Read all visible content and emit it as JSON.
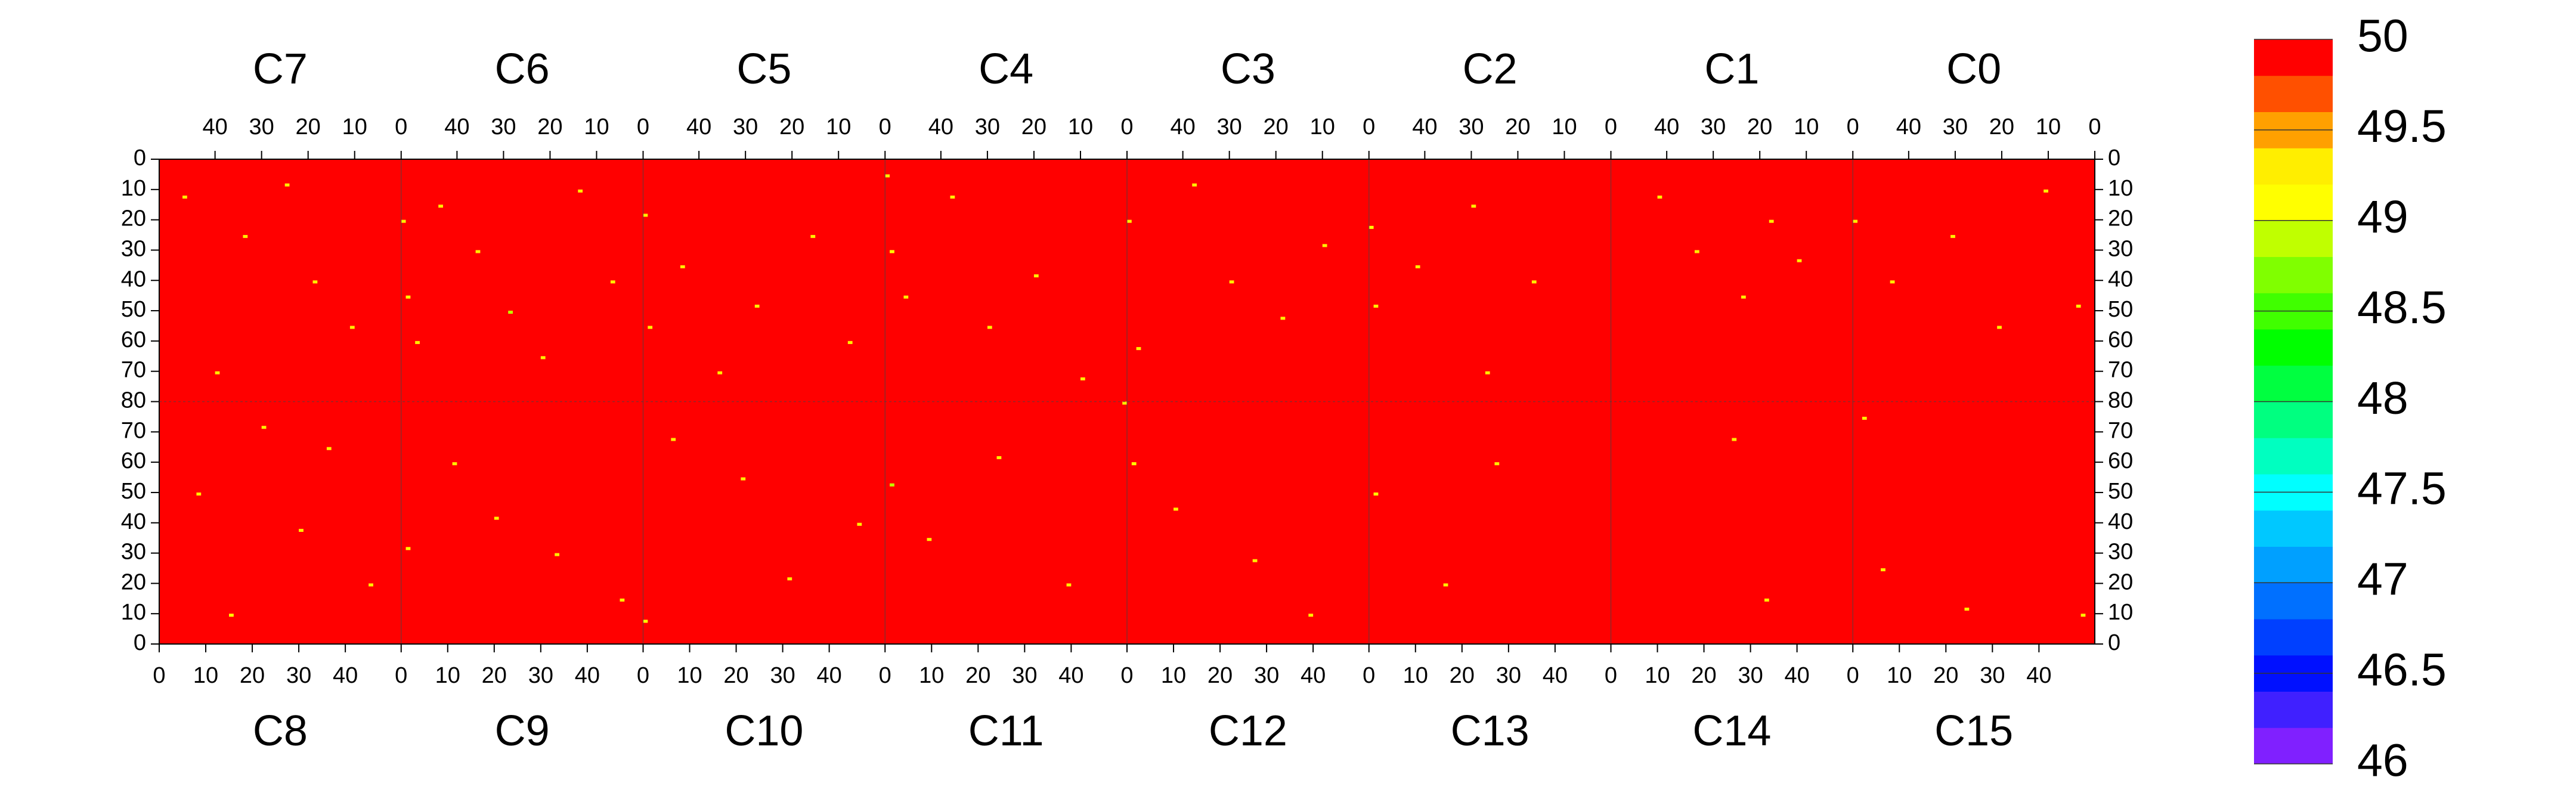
{
  "chart_data": {
    "type": "heatmap",
    "top_labels": [
      "C7",
      "C6",
      "C5",
      "C4",
      "C3",
      "C2",
      "C1",
      "C0"
    ],
    "bottom_labels": [
      "C8",
      "C9",
      "C10",
      "C11",
      "C12",
      "C13",
      "C14",
      "C15"
    ],
    "xlim": [
      0,
      416
    ],
    "ylim": [
      0,
      160
    ],
    "xticks_top": [
      {
        "value": 12,
        "label": "40"
      },
      {
        "value": 22,
        "label": "30"
      },
      {
        "value": 32,
        "label": "20"
      },
      {
        "value": 42,
        "label": "10"
      },
      {
        "value": 52,
        "label": "0"
      },
      {
        "value": 64,
        "label": "40"
      },
      {
        "value": 74,
        "label": "30"
      },
      {
        "value": 84,
        "label": "20"
      },
      {
        "value": 94,
        "label": "10"
      },
      {
        "value": 104,
        "label": "0"
      },
      {
        "value": 116,
        "label": "40"
      },
      {
        "value": 126,
        "label": "30"
      },
      {
        "value": 136,
        "label": "20"
      },
      {
        "value": 146,
        "label": "10"
      },
      {
        "value": 156,
        "label": "0"
      },
      {
        "value": 168,
        "label": "40"
      },
      {
        "value": 178,
        "label": "30"
      },
      {
        "value": 188,
        "label": "20"
      },
      {
        "value": 198,
        "label": "10"
      },
      {
        "value": 208,
        "label": "0"
      },
      {
        "value": 220,
        "label": "40"
      },
      {
        "value": 230,
        "label": "30"
      },
      {
        "value": 240,
        "label": "20"
      },
      {
        "value": 250,
        "label": "10"
      },
      {
        "value": 260,
        "label": "0"
      },
      {
        "value": 272,
        "label": "40"
      },
      {
        "value": 282,
        "label": "30"
      },
      {
        "value": 292,
        "label": "20"
      },
      {
        "value": 302,
        "label": "10"
      },
      {
        "value": 312,
        "label": "0"
      },
      {
        "value": 324,
        "label": "40"
      },
      {
        "value": 334,
        "label": "30"
      },
      {
        "value": 344,
        "label": "20"
      },
      {
        "value": 354,
        "label": "10"
      },
      {
        "value": 364,
        "label": "0"
      },
      {
        "value": 376,
        "label": "40"
      },
      {
        "value": 386,
        "label": "30"
      },
      {
        "value": 396,
        "label": "20"
      },
      {
        "value": 406,
        "label": "10"
      },
      {
        "value": 416,
        "label": "0"
      }
    ],
    "xticks_bottom": [
      0,
      10,
      20,
      30,
      40,
      {
        "value": 52,
        "label": "0"
      },
      {
        "value": 62,
        "label": "10"
      },
      {
        "value": 72,
        "label": "20"
      },
      {
        "value": 82,
        "label": "30"
      },
      {
        "value": 92,
        "label": "40"
      },
      {
        "value": 104,
        "label": "0"
      },
      {
        "value": 114,
        "label": "10"
      },
      {
        "value": 124,
        "label": "20"
      },
      {
        "value": 134,
        "label": "30"
      },
      {
        "value": 144,
        "label": "40"
      },
      {
        "value": 156,
        "label": "0"
      },
      {
        "value": 166,
        "label": "10"
      },
      {
        "value": 176,
        "label": "20"
      },
      {
        "value": 186,
        "label": "30"
      },
      {
        "value": 196,
        "label": "40"
      },
      {
        "value": 208,
        "label": "0"
      },
      {
        "value": 218,
        "label": "10"
      },
      {
        "value": 228,
        "label": "20"
      },
      {
        "value": 238,
        "label": "30"
      },
      {
        "value": 248,
        "label": "40"
      },
      {
        "value": 260,
        "label": "0"
      },
      {
        "value": 270,
        "label": "10"
      },
      {
        "value": 280,
        "label": "20"
      },
      {
        "value": 290,
        "label": "30"
      },
      {
        "value": 300,
        "label": "40"
      },
      {
        "value": 312,
        "label": "0"
      },
      {
        "value": 322,
        "label": "10"
      },
      {
        "value": 332,
        "label": "20"
      },
      {
        "value": 342,
        "label": "30"
      },
      {
        "value": 352,
        "label": "40"
      },
      {
        "value": 364,
        "label": "0"
      },
      {
        "value": 374,
        "label": "10"
      },
      {
        "value": 384,
        "label": "20"
      },
      {
        "value": 394,
        "label": "30"
      },
      {
        "value": 404,
        "label": "40"
      }
    ],
    "yticks": [
      0,
      10,
      20,
      30,
      40,
      50,
      60,
      70,
      80,
      {
        "value": 90,
        "label": "70"
      },
      {
        "value": 100,
        "label": "60"
      },
      {
        "value": 110,
        "label": "50"
      },
      {
        "value": 120,
        "label": "40"
      },
      {
        "value": 130,
        "label": "30"
      },
      {
        "value": 140,
        "label": "20"
      },
      {
        "value": 150,
        "label": "10"
      },
      {
        "value": 160,
        "label": "0"
      }
    ],
    "fill_value": 50,
    "x": [
      5,
      18,
      27,
      33,
      41,
      12,
      22,
      36,
      8,
      30,
      45,
      15,
      52,
      53,
      55,
      60,
      68,
      75,
      82,
      90,
      97,
      63,
      72,
      85,
      99,
      53,
      104,
      105,
      112,
      120,
      128,
      140,
      148,
      110,
      125,
      135,
      150,
      104,
      156,
      157,
      160,
      170,
      178,
      188,
      198,
      157,
      165,
      180,
      195,
      207,
      208,
      210,
      222,
      230,
      241,
      250,
      218,
      235,
      247,
      209,
      260,
      261,
      261,
      270,
      282,
      285,
      287,
      295,
      276,
      322,
      330,
      340,
      346,
      352,
      338,
      345,
      364,
      372,
      385,
      395,
      405,
      412,
      370,
      388,
      413,
      366
    ],
    "y": [
      12,
      25,
      8,
      40,
      55,
      70,
      88,
      95,
      110,
      122,
      140,
      150,
      20,
      45,
      60,
      15,
      30,
      50,
      65,
      10,
      40,
      100,
      118,
      130,
      145,
      128,
      18,
      55,
      35,
      70,
      48,
      25,
      60,
      92,
      105,
      138,
      120,
      152,
      5,
      30,
      45,
      12,
      55,
      38,
      72,
      107,
      125,
      98,
      140,
      80,
      20,
      62,
      8,
      40,
      52,
      28,
      115,
      132,
      150,
      100,
      22,
      48,
      110,
      35,
      15,
      70,
      100,
      40,
      140,
      12,
      30,
      45,
      20,
      33,
      92,
      145,
      20,
      40,
      25,
      55,
      10,
      48,
      135,
      148,
      150,
      85
    ],
    "values": [
      49.2,
      49.2,
      49.2,
      49.2,
      49.2,
      49.2,
      49.2,
      49.2,
      49.2,
      49.2,
      49.2,
      49.0,
      49.2,
      49.0,
      49.2,
      49.2,
      49.2,
      48.8,
      49.2,
      49.2,
      49.2,
      49.2,
      49.2,
      49.2,
      49.2,
      49.0,
      49.2,
      49.2,
      49.2,
      49.2,
      49.2,
      49.2,
      49.2,
      49.2,
      49.2,
      49.2,
      49.2,
      49.0,
      49.2,
      49.0,
      49.2,
      49.2,
      49.2,
      49.2,
      49.2,
      48.8,
      49.2,
      49.2,
      49.2,
      49.2,
      49.2,
      49.2,
      49.2,
      49.2,
      49.2,
      49.2,
      49.2,
      49.2,
      49.2,
      49.0,
      49.0,
      49.2,
      49.0,
      49.2,
      49.2,
      49.2,
      49.2,
      49.2,
      49.2,
      49.2,
      49.2,
      49.2,
      49.2,
      49.2,
      49.2,
      49.2,
      49.2,
      49.2,
      49.2,
      49.2,
      49.2,
      49.2,
      49.2,
      49.2,
      49.2,
      49.2
    ],
    "colorbar": {
      "lim": [
        46,
        50
      ],
      "ticks": [
        46,
        46.5,
        47,
        47.5,
        48,
        48.5,
        49,
        49.5,
        50
      ],
      "colors": [
        "#8020ff",
        "#4020ff",
        "#0010ff",
        "#0040ff",
        "#0070ff",
        "#00a0ff",
        "#00c8ff",
        "#00ffff",
        "#00ffc0",
        "#00ff80",
        "#00ff40",
        "#00ff00",
        "#40ff00",
        "#80ff00",
        "#c0ff00",
        "#ffff00",
        "#ffee00",
        "#ffa000",
        "#ff5000",
        "#ff0000"
      ]
    }
  }
}
